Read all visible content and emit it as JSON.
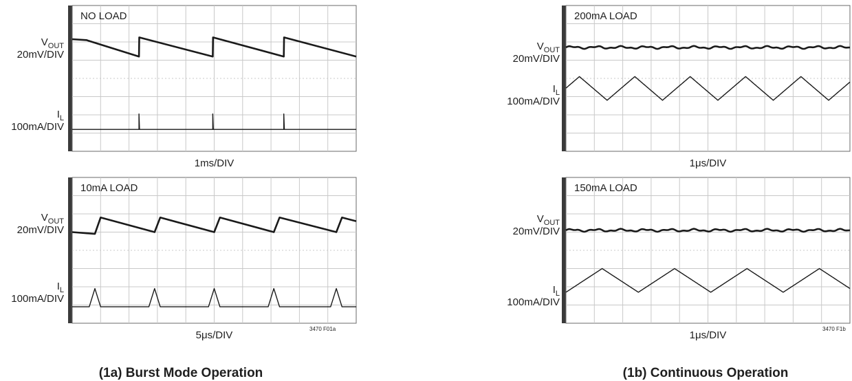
{
  "figure_a": {
    "caption": "(1a) Burst Mode Operation",
    "figure_code": "3470 F01a"
  },
  "figure_b": {
    "caption": "(1b) Continuous Operation",
    "figure_code": "3470 F1b"
  },
  "chart_data": [
    {
      "type": "line",
      "panel": "1a-top",
      "title": "NO LOAD",
      "xlabel": "1ms/DIV",
      "xlim": [
        0,
        10
      ],
      "ylim": [
        -4,
        4
      ],
      "grid": true,
      "channels": [
        {
          "name": "V",
          "subscript": "OUT",
          "scale": "20mV/DIV"
        },
        {
          "name": "I",
          "subscript": "L",
          "scale": "100mA/DIV"
        }
      ],
      "series": [
        {
          "name": "VOUT",
          "shape": "sawtooth-down",
          "x": [
            0,
            0.5,
            2.35,
            2.36,
            4.95,
            4.96,
            7.45,
            7.46,
            10
          ],
          "values": [
            2.15,
            2.1,
            1.2,
            2.25,
            1.2,
            2.25,
            1.2,
            2.25,
            1.2
          ]
        },
        {
          "name": "IL",
          "shape": "flat-with-spikes",
          "baseline": -2.8,
          "spike_x": [
            2.35,
            4.95,
            7.45
          ],
          "spike_height": -1.95
        }
      ]
    },
    {
      "type": "line",
      "panel": "1a-bottom",
      "title": "10mA LOAD",
      "xlabel": "5μs/DIV",
      "xlim": [
        0,
        10
      ],
      "ylim": [
        -4,
        4
      ],
      "grid": true,
      "channels": [
        {
          "name": "V",
          "subscript": "OUT",
          "scale": "20mV/DIV"
        },
        {
          "name": "I",
          "subscript": "L",
          "scale": "100mA/DIV"
        }
      ],
      "series": [
        {
          "name": "VOUT",
          "shape": "sawtooth-up",
          "x": [
            0,
            0.8,
            1.0,
            2.9,
            3.1,
            5.0,
            5.2,
            7.1,
            7.3,
            9.3,
            9.5,
            10
          ],
          "values": [
            1.0,
            0.9,
            1.8,
            1.0,
            1.8,
            1.0,
            1.8,
            1.0,
            1.8,
            1.0,
            1.8,
            1.6
          ]
        },
        {
          "name": "IL",
          "shape": "triangle-pulses",
          "baseline": -3.1,
          "pulse_x": [
            0.8,
            2.9,
            5.0,
            7.1,
            9.3
          ],
          "pulse_peak": -2.1,
          "pulse_width": 0.4
        }
      ]
    },
    {
      "type": "line",
      "panel": "1b-top",
      "title": "200mA LOAD",
      "xlabel": "1μs/DIV",
      "xlim": [
        0,
        10
      ],
      "ylim": [
        -4,
        4
      ],
      "grid": true,
      "channels": [
        {
          "name": "V",
          "subscript": "OUT",
          "scale": "20mV/DIV"
        },
        {
          "name": "I",
          "subscript": "L",
          "scale": "100mA/DIV"
        }
      ],
      "series": [
        {
          "name": "VOUT",
          "shape": "flat",
          "level": 1.7
        },
        {
          "name": "IL",
          "shape": "triangle",
          "period": 1.95,
          "phase": 0.5,
          "high": 0.1,
          "low": -1.2
        }
      ]
    },
    {
      "type": "line",
      "panel": "1b-bottom",
      "title": "150mA LOAD",
      "xlabel": "1μs/DIV",
      "xlim": [
        0,
        10
      ],
      "ylim": [
        -4,
        4
      ],
      "grid": true,
      "channels": [
        {
          "name": "V",
          "subscript": "OUT",
          "scale": "20mV/DIV"
        },
        {
          "name": "I",
          "subscript": "L",
          "scale": "100mA/DIV"
        }
      ],
      "series": [
        {
          "name": "VOUT",
          "shape": "flat",
          "level": 1.1
        },
        {
          "name": "IL",
          "shape": "triangle",
          "period": 2.55,
          "phase": 0.0,
          "high": -1.0,
          "low": -2.3
        }
      ]
    }
  ]
}
